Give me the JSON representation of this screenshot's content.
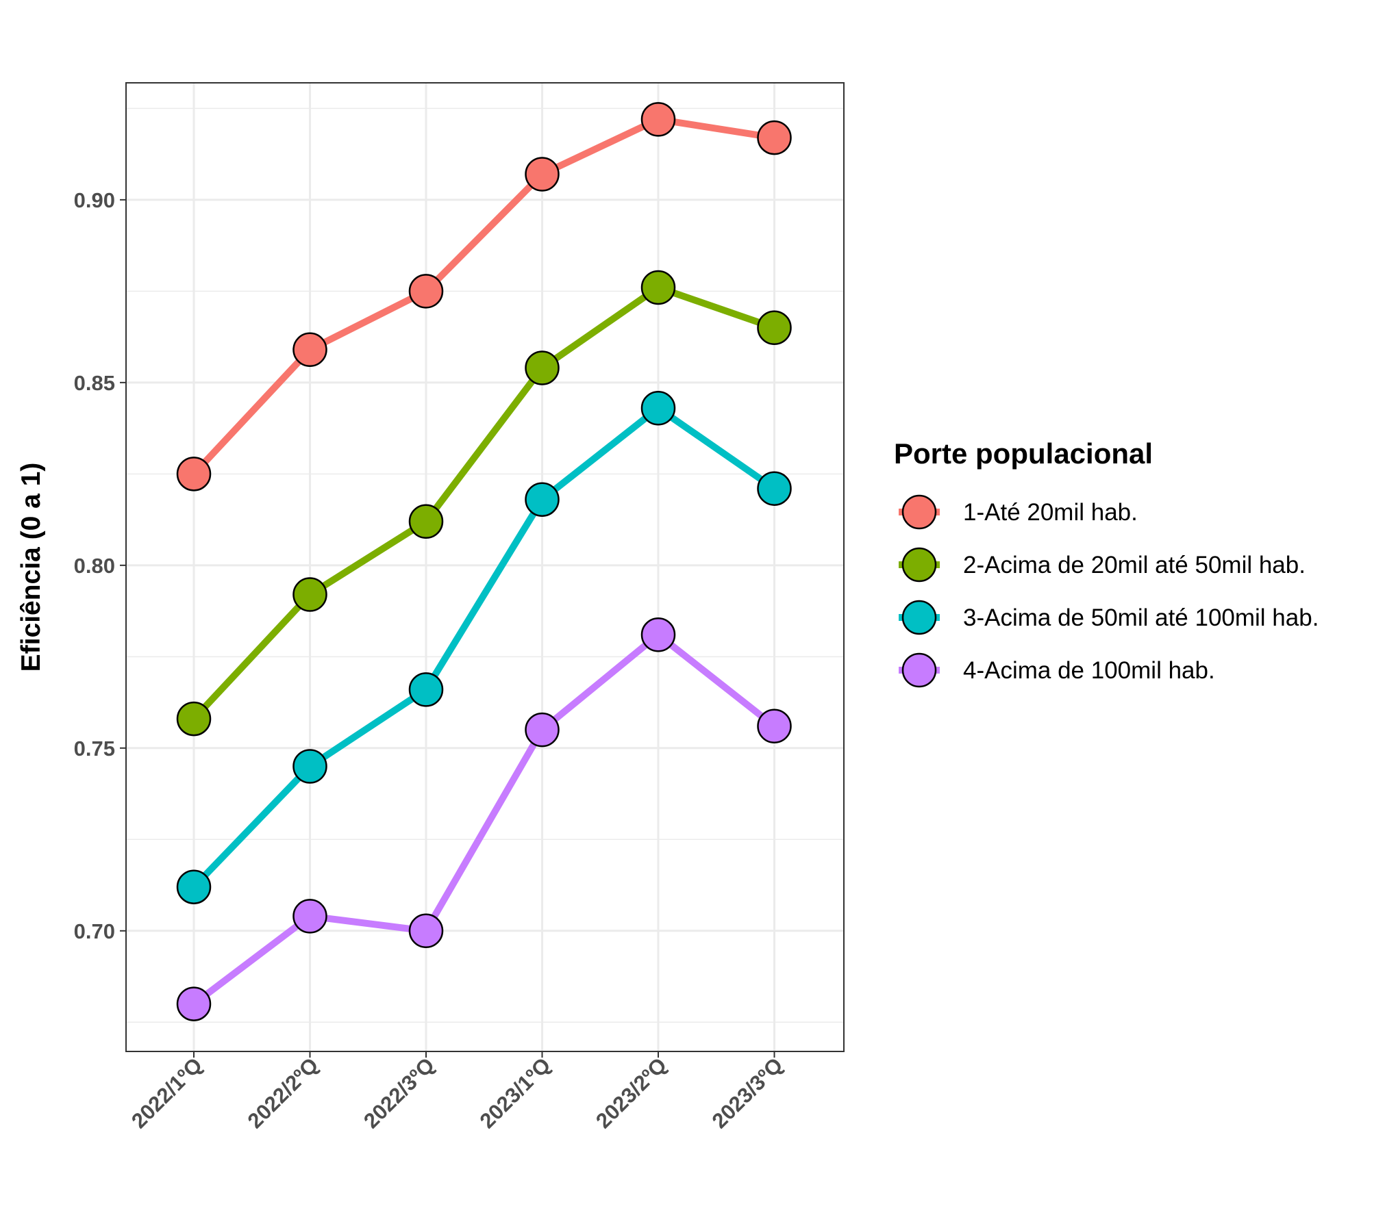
{
  "chart_data": {
    "type": "line",
    "title": "",
    "xlabel": "",
    "ylabel": "Eficiência (0 a 1)",
    "categories": [
      "2022/1ºQ",
      "2022/2ºQ",
      "2022/3ºQ",
      "2023/1ºQ",
      "2023/2ºQ",
      "2023/3ºQ"
    ],
    "ylim": [
      0.667,
      0.932
    ],
    "yticks": [
      0.7,
      0.75,
      0.8,
      0.85,
      0.9
    ],
    "ytick_labels": [
      "0.70",
      "0.75",
      "0.80",
      "0.85",
      "0.90"
    ],
    "grid": true,
    "legend_title": "Porte populacional",
    "legend_position": "right",
    "series": [
      {
        "name": "1-Até 20mil hab.",
        "color": "#F8766D",
        "values": [
          0.825,
          0.859,
          0.875,
          0.907,
          0.922,
          0.917
        ]
      },
      {
        "name": "2-Acima de 20mil até 50mil hab.",
        "color": "#7CAE00",
        "values": [
          0.758,
          0.792,
          0.812,
          0.854,
          0.876,
          0.865
        ]
      },
      {
        "name": "3-Acima de 50mil até 100mil hab.",
        "color": "#00BFC4",
        "values": [
          0.712,
          0.745,
          0.766,
          0.818,
          0.843,
          0.821
        ]
      },
      {
        "name": "4-Acima de 100mil hab.",
        "color": "#C77CFF",
        "values": [
          0.68,
          0.704,
          0.7,
          0.755,
          0.781,
          0.756
        ]
      }
    ]
  }
}
